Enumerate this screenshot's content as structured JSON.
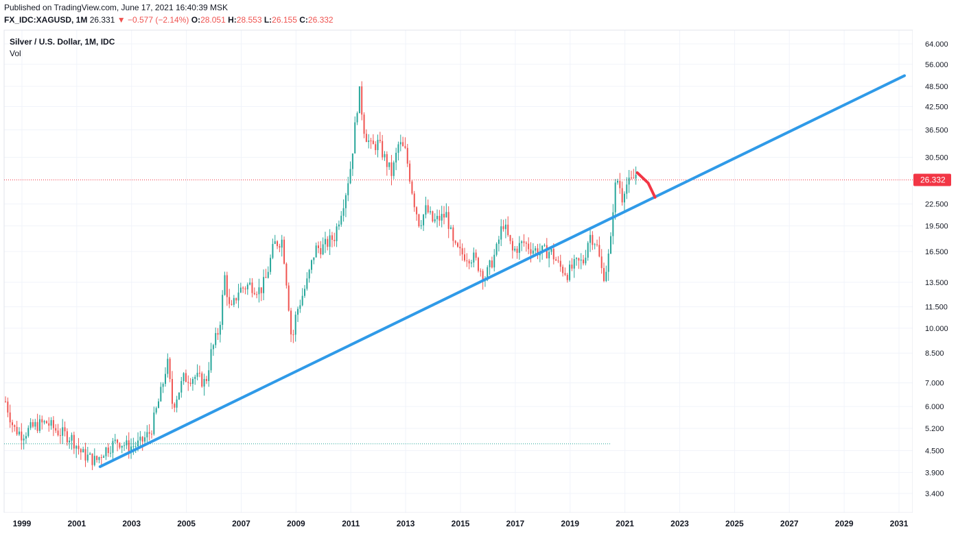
{
  "header": {
    "published": "Published on TradingView.com, June 17, 2021 16:40:39 MSK",
    "symbol": "FX_IDC:XAGUSD, 1M",
    "last": "26.331",
    "change": "−0.577 (−2.14%)",
    "open_label": "O:",
    "open": "28.051",
    "high_label": "H:",
    "high": "28.553",
    "low_label": "L:",
    "low": "26.155",
    "close_label": "C:",
    "close": "26.332"
  },
  "legend": {
    "title": "Silver / U.S. Dollar, 1M, IDC",
    "vol": "Vol"
  },
  "chart_data": {
    "type": "candlestick",
    "title": "Silver / U.S. Dollar, 1M, IDC",
    "y_scale": "log",
    "ylim": [
      3.0,
      70.0
    ],
    "xlim": [
      1998.35,
      2031.5
    ],
    "y_ticks": [
      "64.000",
      "56.000",
      "48.500",
      "42.500",
      "36.500",
      "30.500",
      "22.500",
      "19.500",
      "16.500",
      "13.500",
      "11.500",
      "10.000",
      "8.500",
      "7.000",
      "6.000",
      "5.200",
      "4.500",
      "3.900",
      "3.400"
    ],
    "x_ticks": [
      "1999",
      "2001",
      "2003",
      "2005",
      "2007",
      "2009",
      "2011",
      "2013",
      "2015",
      "2017",
      "2019",
      "2021",
      "2023",
      "2025",
      "2027",
      "2029",
      "2031"
    ],
    "last_price_label": "26.332",
    "last_price": 26.332,
    "grid": true,
    "colors": {
      "up": "#26a69a",
      "down": "#ef5350",
      "trendline": "#2f9ae8",
      "projection": "#f23645",
      "price_line": "#f23645"
    },
    "trendline": {
      "start": [
        2001.85,
        4.05
      ],
      "end": [
        2031.2,
        52.0
      ]
    },
    "projection": [
      [
        2021.45,
        27.6
      ],
      [
        2021.85,
        25.8
      ],
      [
        2022.1,
        23.5
      ]
    ],
    "support_level": {
      "price": 4.7,
      "x_range": [
        1998.35,
        2020.5
      ]
    },
    "price_path": [
      [
        1998.4,
        6.2
      ],
      [
        1998.7,
        5.2
      ],
      [
        1999.0,
        5.0
      ],
      [
        1999.5,
        5.3
      ],
      [
        1999.9,
        5.4
      ],
      [
        2000.3,
        5.1
      ],
      [
        2000.8,
        4.9
      ],
      [
        2001.2,
        4.4
      ],
      [
        2001.7,
        4.2
      ],
      [
        2002.0,
        4.5
      ],
      [
        2002.5,
        4.8
      ],
      [
        2002.9,
        4.6
      ],
      [
        2003.3,
        4.7
      ],
      [
        2003.7,
        5.1
      ],
      [
        2004.1,
        6.7
      ],
      [
        2004.3,
        8.1
      ],
      [
        2004.5,
        6.0
      ],
      [
        2004.9,
        7.2
      ],
      [
        2005.3,
        7.3
      ],
      [
        2005.7,
        7.0
      ],
      [
        2005.9,
        8.5
      ],
      [
        2006.2,
        10.0
      ],
      [
        2006.4,
        14.0
      ],
      [
        2006.6,
        11.0
      ],
      [
        2006.9,
        12.8
      ],
      [
        2007.3,
        13.3
      ],
      [
        2007.7,
        12.8
      ],
      [
        2007.9,
        13.8
      ],
      [
        2008.2,
        17.3
      ],
      [
        2008.5,
        17.8
      ],
      [
        2008.7,
        12.5
      ],
      [
        2008.85,
        9.0
      ],
      [
        2009.0,
        11.0
      ],
      [
        2009.4,
        13.5
      ],
      [
        2009.7,
        16.8
      ],
      [
        2010.0,
        17.0
      ],
      [
        2010.4,
        18.2
      ],
      [
        2010.8,
        24.0
      ],
      [
        2011.0,
        29.0
      ],
      [
        2011.3,
        47.5
      ],
      [
        2011.5,
        36.0
      ],
      [
        2011.75,
        32.5
      ],
      [
        2012.0,
        33.5
      ],
      [
        2012.3,
        29.5
      ],
      [
        2012.5,
        27.3
      ],
      [
        2012.75,
        33.5
      ],
      [
        2013.0,
        31.5
      ],
      [
        2013.3,
        23.0
      ],
      [
        2013.5,
        19.8
      ],
      [
        2013.75,
        21.8
      ],
      [
        2014.0,
        20.0
      ],
      [
        2014.5,
        21.0
      ],
      [
        2014.75,
        17.0
      ],
      [
        2015.0,
        16.3
      ],
      [
        2015.5,
        15.8
      ],
      [
        2015.9,
        13.9
      ],
      [
        2016.3,
        16.5
      ],
      [
        2016.55,
        20.0
      ],
      [
        2016.9,
        16.5
      ],
      [
        2017.3,
        17.5
      ],
      [
        2017.6,
        16.8
      ],
      [
        2017.9,
        16.5
      ],
      [
        2018.3,
        16.5
      ],
      [
        2018.6,
        15.0
      ],
      [
        2018.9,
        14.3
      ],
      [
        2019.2,
        15.2
      ],
      [
        2019.5,
        15.5
      ],
      [
        2019.7,
        18.5
      ],
      [
        2019.95,
        17.5
      ],
      [
        2020.2,
        14.0
      ],
      [
        2020.35,
        15.0
      ],
      [
        2020.5,
        18.0
      ],
      [
        2020.6,
        24.5
      ],
      [
        2020.75,
        26.5
      ],
      [
        2020.9,
        23.5
      ],
      [
        2021.0,
        25.5
      ],
      [
        2021.2,
        25.8
      ],
      [
        2021.3,
        26.4
      ],
      [
        2021.45,
        27.8
      ]
    ]
  }
}
